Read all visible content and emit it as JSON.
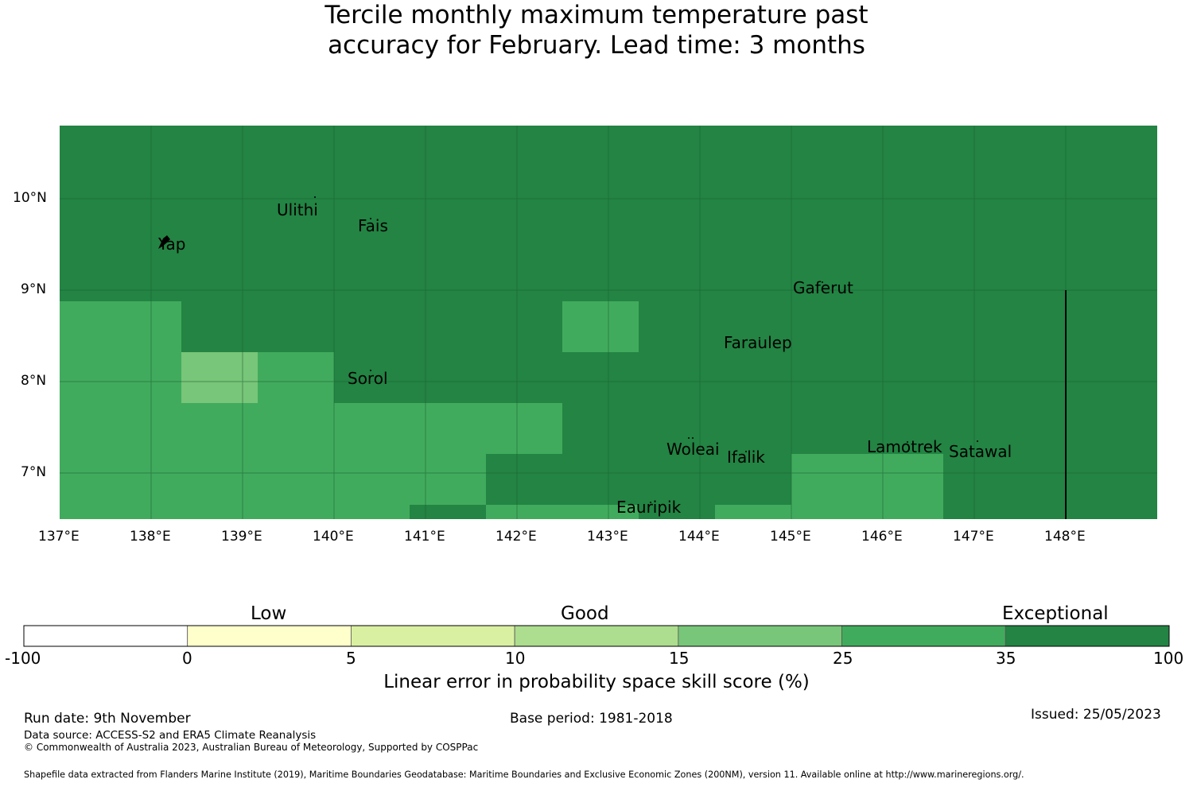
{
  "title_line1": "Tercile monthly maximum temperature past",
  "title_line2": "accuracy for February. Lead time: 3 months",
  "map": {
    "lat_ticks": [
      "10°N",
      "9°N",
      "8°N",
      "7°N"
    ],
    "lon_ticks": [
      "137°E",
      "138°E",
      "139°E",
      "140°E",
      "141°E",
      "142°E",
      "143°E",
      "144°E",
      "145°E",
      "146°E",
      "147°E",
      "148°E"
    ],
    "extent": {
      "lon_min": 137.0,
      "lon_max": 149.0,
      "lat_min": 6.5,
      "lat_max": 10.8
    },
    "places": [
      {
        "name": "Ulithi",
        "lon": 139.7,
        "lat": 9.85
      },
      {
        "name": "Fais",
        "lon": 140.5,
        "lat": 9.7
      },
      {
        "name": "Yap",
        "lon": 138.2,
        "lat": 9.5
      },
      {
        "name": "Gaferut",
        "lon": 145.35,
        "lat": 9.0
      },
      {
        "name": "Faraulep",
        "lon": 144.65,
        "lat": 8.4
      },
      {
        "name": "Sorol",
        "lon": 140.4,
        "lat": 8.03
      },
      {
        "name": "Lamotrek",
        "lon": 146.25,
        "lat": 7.27
      },
      {
        "name": "Woleai",
        "lon": 143.85,
        "lat": 7.24
      },
      {
        "name": "Satawal",
        "lon": 147.08,
        "lat": 7.2
      },
      {
        "name": "Ifalik",
        "lon": 144.5,
        "lat": 7.15
      },
      {
        "name": "Eauripik",
        "lon": 143.45,
        "lat": 6.62
      }
    ],
    "skill_cells_note_colors": {
      "exceptional": "#238443",
      "very_good": "#41ab5d",
      "good": "#78c679"
    }
  },
  "colorbar": {
    "categories": [
      "Low",
      "Good",
      "Exceptional"
    ],
    "ticks": [
      "-100",
      "0",
      "5",
      "10",
      "15",
      "25",
      "35",
      "100"
    ],
    "colors": [
      "#ffffff",
      "#ffffcc",
      "#d9f0a3",
      "#addd8e",
      "#78c679",
      "#41ab5d",
      "#238443"
    ],
    "label": "Linear error in probability space skill score (%)"
  },
  "footer": {
    "run_date": "Run date: 9th November",
    "base_period": "Base period: 1981-2018",
    "issued": "Issued: 25/05/2023",
    "data_source": "Data source: ACCESS-S2 and ERA5 Climate Reanalysis",
    "copyright": "© Commonwealth of Australia 2023, Australian Bureau of Meteorology, Supported by COSPPac",
    "shapefile": "Shapefile data extracted from Flanders Marine Institute (2019), Maritime Boundaries Geodatabase: Maritime Boundaries and Exclusive Economic Zones (200NM), version 11. Available online at http://www.marineregions.org/."
  }
}
